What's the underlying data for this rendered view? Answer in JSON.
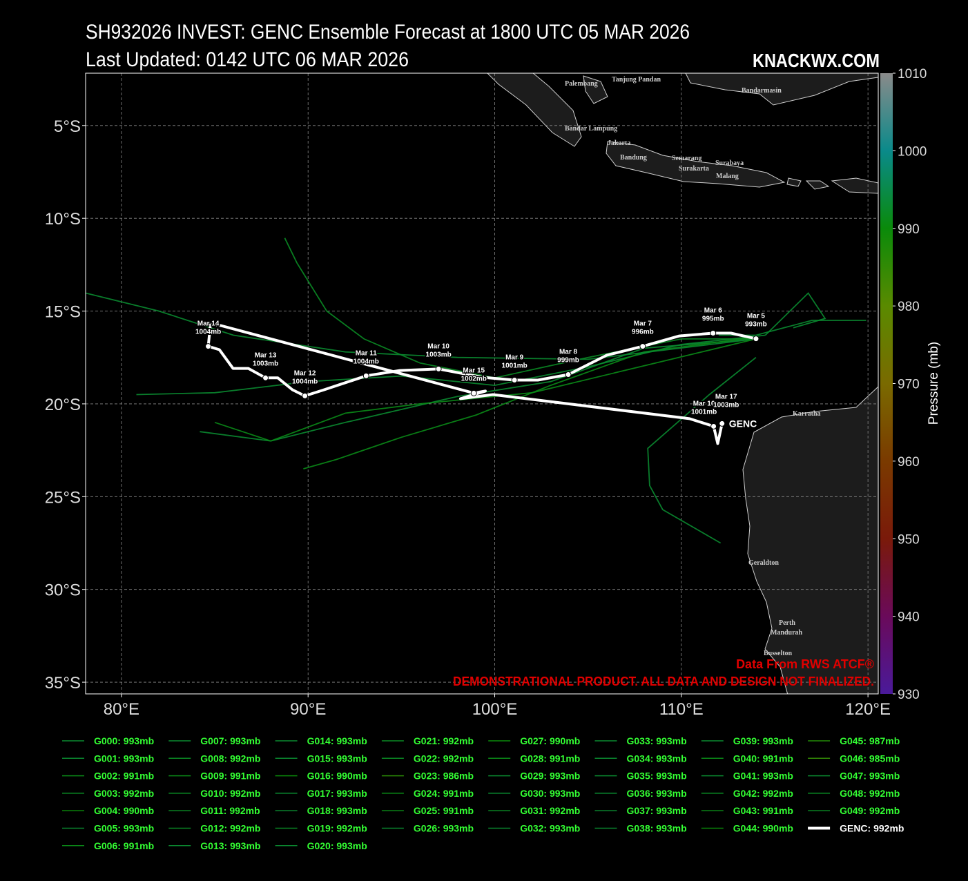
{
  "title": "SH932026 INVEST: GENC Ensemble Forecast at 1800 UTC 05 MAR 2026",
  "subtitle": "Last Updated: 0142 UTC 06 MAR 2026",
  "watermark": "KNACKWX.COM",
  "credit": "Data From RWS ATCF®",
  "disclaimer": "DEMONSTRATIONAL PRODUCT. ALL DATA AND DESIGN NOT FINALIZED.",
  "chart_data": {
    "type": "track_map",
    "xlim": [
      78.08,
      120.55
    ],
    "ylim": [
      -35.63,
      -2.18
    ],
    "xticks": [
      {
        "value": 80,
        "label": "80°E"
      },
      {
        "value": 90,
        "label": "90°E"
      },
      {
        "value": 100,
        "label": "100°E"
      },
      {
        "value": 110,
        "label": "110°E"
      },
      {
        "value": 120,
        "label": "120°E"
      }
    ],
    "yticks": [
      {
        "value": -5,
        "label": "5°S"
      },
      {
        "value": -10,
        "label": "10°S"
      },
      {
        "value": -15,
        "label": "15°S"
      },
      {
        "value": -20,
        "label": "20°S"
      },
      {
        "value": -25,
        "label": "25°S"
      },
      {
        "value": -30,
        "label": "30°S"
      },
      {
        "value": -35,
        "label": "35°S"
      }
    ],
    "grid": true,
    "colorbar": {
      "label": "Pressure (mb)",
      "lim": [
        930,
        1010
      ],
      "ticks": [
        930,
        940,
        950,
        960,
        970,
        980,
        990,
        1000,
        1010
      ],
      "colormap": [
        [
          930,
          "#4a1a9a"
        ],
        [
          940,
          "#6a0a5a"
        ],
        [
          950,
          "#7a1a0a"
        ],
        [
          960,
          "#7a3a00"
        ],
        [
          970,
          "#7a6a00"
        ],
        [
          980,
          "#5a8a00"
        ],
        [
          990,
          "#0a8a0a"
        ],
        [
          1000,
          "#0a8a8a"
        ],
        [
          1010,
          "#8a8a8a"
        ]
      ]
    },
    "cities": [
      "Palembang",
      "Tanjung Pandan",
      "Bandarmasin",
      "Bandar Lampung",
      "Jakarta",
      "Bandung",
      "Semarang",
      "Surakarta",
      "Surabaya",
      "Malang",
      "Karratha",
      "Geraldton",
      "Perth",
      "Mandurah",
      "Busselton"
    ],
    "ensemble": [
      {
        "label": "G000: 993mb",
        "min_pressure": 993,
        "lon": [
          114.5,
          110,
          105,
          100,
          95,
          90,
          85,
          80.8
        ],
        "lat": [
          -16.3,
          -16.8,
          -18,
          -19,
          -18.5,
          -18.8,
          -19.4,
          -19.5
        ]
      },
      {
        "label": "G001: 993mb",
        "min_pressure": 993
      },
      {
        "label": "G002: 991mb",
        "min_pressure": 991
      },
      {
        "label": "G003: 992mb",
        "min_pressure": 992
      },
      {
        "label": "G004: 990mb",
        "min_pressure": 990
      },
      {
        "label": "G005: 993mb",
        "min_pressure": 993,
        "lon": [
          114,
          108,
          103,
          98,
          92,
          88,
          84.2
        ],
        "lat": [
          -16.5,
          -17,
          -18.8,
          -19.6,
          -21,
          -22,
          -21.5
        ]
      },
      {
        "label": "G006: 991mb",
        "min_pressure": 991
      },
      {
        "label": "G007: 993mb",
        "min_pressure": 993
      },
      {
        "label": "G008: 992mb",
        "min_pressure": 992
      },
      {
        "label": "G009: 991mb",
        "min_pressure": 991
      },
      {
        "label": "G010: 992mb",
        "min_pressure": 992,
        "lon": [
          114,
          110,
          105,
          100,
          96,
          93,
          91,
          89.4,
          88.75
        ],
        "lat": [
          -16.5,
          -16.5,
          -17.5,
          -18.6,
          -17.8,
          -16.5,
          -15,
          -12.4,
          -11.06
        ]
      },
      {
        "label": "G011: 992mb",
        "min_pressure": 992
      },
      {
        "label": "G012: 992mb",
        "min_pressure": 992
      },
      {
        "label": "G013: 993mb",
        "min_pressure": 993
      },
      {
        "label": "G014: 993mb",
        "min_pressure": 993
      },
      {
        "label": "G015: 993mb",
        "min_pressure": 993,
        "lon": [
          112,
          114,
          117,
          119.9
        ],
        "lat": [
          -16.3,
          -16.3,
          -15.5,
          -15.5
        ]
      },
      {
        "label": "G016: 990mb",
        "min_pressure": 990
      },
      {
        "label": "G017: 993mb",
        "min_pressure": 993
      },
      {
        "label": "G018: 993mb",
        "min_pressure": 993
      },
      {
        "label": "G019: 992mb",
        "min_pressure": 992
      },
      {
        "label": "G020: 993mb",
        "min_pressure": 993,
        "lon": [
          114,
          111.5,
          108.2,
          108.3,
          109,
          112.1
        ],
        "lat": [
          -17.5,
          -19.5,
          -22.4,
          -24.4,
          -25.7,
          -27.5
        ]
      },
      {
        "label": "G021: 992mb",
        "min_pressure": 992
      },
      {
        "label": "G022: 992mb",
        "min_pressure": 992
      },
      {
        "label": "G023: 986mb",
        "min_pressure": 986
      },
      {
        "label": "G024: 991mb",
        "min_pressure": 991
      },
      {
        "label": "G025: 991mb",
        "min_pressure": 991,
        "lon": [
          114,
          108,
          103,
          99,
          95,
          91.5,
          89.75
        ],
        "lat": [
          -16.4,
          -17.2,
          -19,
          -20.6,
          -21.8,
          -23,
          -23.5
        ]
      },
      {
        "label": "G026: 993mb",
        "min_pressure": 993
      },
      {
        "label": "G027: 990mb",
        "min_pressure": 990
      },
      {
        "label": "G028: 991mb",
        "min_pressure": 991
      },
      {
        "label": "G029: 993mb",
        "min_pressure": 993
      },
      {
        "label": "G030: 993mb",
        "min_pressure": 993,
        "lon": [
          114,
          105,
          98,
          92,
          86,
          82,
          78.08
        ],
        "lat": [
          -16.5,
          -17.6,
          -17.5,
          -17.2,
          -16.3,
          -15,
          -14.03
        ]
      },
      {
        "label": "G031: 992mb",
        "min_pressure": 992
      },
      {
        "label": "G032: 993mb",
        "min_pressure": 993
      },
      {
        "label": "G033: 993mb",
        "min_pressure": 993
      },
      {
        "label": "G034: 993mb",
        "min_pressure": 993
      },
      {
        "label": "G035: 993mb",
        "min_pressure": 993,
        "lon": [
          114.5,
          116.8,
          117.7,
          116
        ],
        "lat": [
          -16.3,
          -14.03,
          -15.4,
          -15.9
        ]
      },
      {
        "label": "G036: 993mb",
        "min_pressure": 993
      },
      {
        "label": "G037: 993mb",
        "min_pressure": 993
      },
      {
        "label": "G038: 993mb",
        "min_pressure": 993
      },
      {
        "label": "G039: 993mb",
        "min_pressure": 993
      },
      {
        "label": "G040: 991mb",
        "min_pressure": 991,
        "lon": [
          114,
          102,
          96,
          92,
          88,
          85
        ],
        "lat": [
          -16.5,
          -19.4,
          -20,
          -20.5,
          -22,
          -21
        ]
      },
      {
        "label": "G041: 993mb",
        "min_pressure": 993
      },
      {
        "label": "G042: 992mb",
        "min_pressure": 992
      },
      {
        "label": "G043: 991mb",
        "min_pressure": 991
      },
      {
        "label": "G044: 990mb",
        "min_pressure": 990
      },
      {
        "label": "G045: 987mb",
        "min_pressure": 987
      },
      {
        "label": "G046: 985mb",
        "min_pressure": 985
      },
      {
        "label": "G047: 993mb",
        "min_pressure": 993
      },
      {
        "label": "G048: 992mb",
        "min_pressure": 992
      },
      {
        "label": "G049: 992mb",
        "min_pressure": 992
      }
    ],
    "genc": {
      "name": "GENC",
      "legend_label": "GENC: 992mb",
      "min_pressure": 992,
      "color": "#ffffff",
      "lon": [
        114.0,
        112.66,
        111.7,
        109.89,
        107.93,
        106.0,
        103.94,
        102.31,
        101.06,
        99.36,
        96.99,
        94.92,
        93.11,
        90.86,
        89.83,
        89.16,
        88.38,
        87.72,
        86.8,
        85.98,
        85.25,
        84.65,
        84.77,
        85.32,
        98.88,
        99.5,
        98.17,
        99.91,
        110.44,
        111.73,
        111.95,
        112.18
      ],
      "lat": [
        -16.49,
        -16.19,
        -16.19,
        -16.34,
        -16.9,
        -17.38,
        -18.42,
        -18.72,
        -18.72,
        -18.57,
        -18.12,
        -18.2,
        -18.49,
        -19.24,
        -19.57,
        -19.24,
        -18.6,
        -18.6,
        -18.09,
        -18.09,
        -17.08,
        -16.9,
        -15.71,
        -15.78,
        -19.42,
        -19.31,
        -19.72,
        -19.5,
        -20.8,
        -21.21,
        -22.14,
        -21.06
      ],
      "points": [
        {
          "date": "Mar 5",
          "pressure": 993,
          "pressure_label": "993mb",
          "lon": 114.0,
          "lat": -16.49
        },
        {
          "date": "Mar 6",
          "pressure": 995,
          "pressure_label": "995mb",
          "lon": 111.7,
          "lat": -16.19
        },
        {
          "date": "Mar 7",
          "pressure": 996,
          "pressure_label": "996mb",
          "lon": 107.93,
          "lat": -16.9
        },
        {
          "date": "Mar 8",
          "pressure": 999,
          "pressure_label": "999mb",
          "lon": 103.94,
          "lat": -18.42
        },
        {
          "date": "Mar 9",
          "pressure": 1001,
          "pressure_label": "1001mb",
          "lon": 101.06,
          "lat": -18.72
        },
        {
          "date": "Mar 10",
          "pressure": 1003,
          "pressure_label": "1003mb",
          "lon": 96.99,
          "lat": -18.12
        },
        {
          "date": "Mar 11",
          "pressure": 1004,
          "pressure_label": "1004mb",
          "lon": 93.11,
          "lat": -18.49
        },
        {
          "date": "Mar 12",
          "pressure": 1004,
          "pressure_label": "1004mb",
          "lon": 89.83,
          "lat": -19.57
        },
        {
          "date": "Mar 13",
          "pressure": 1003,
          "pressure_label": "1003mb",
          "lon": 87.72,
          "lat": -18.6
        },
        {
          "date": "Mar 14",
          "pressure": 1004,
          "pressure_label": "1004mb",
          "lon": 84.65,
          "lat": -16.9
        },
        {
          "date": "Mar 15",
          "pressure": 1002,
          "pressure_label": "1002mb",
          "lon": 98.88,
          "lat": -19.42
        },
        {
          "date": "Mar 16",
          "pressure": 1001,
          "pressure_label": "1001mb",
          "lon": 111.73,
          "lat": -21.21
        },
        {
          "date": "Mar 17",
          "pressure": 1003,
          "pressure_label": "1003mb",
          "lon": 112.18,
          "lat": -21.06
        }
      ]
    }
  }
}
